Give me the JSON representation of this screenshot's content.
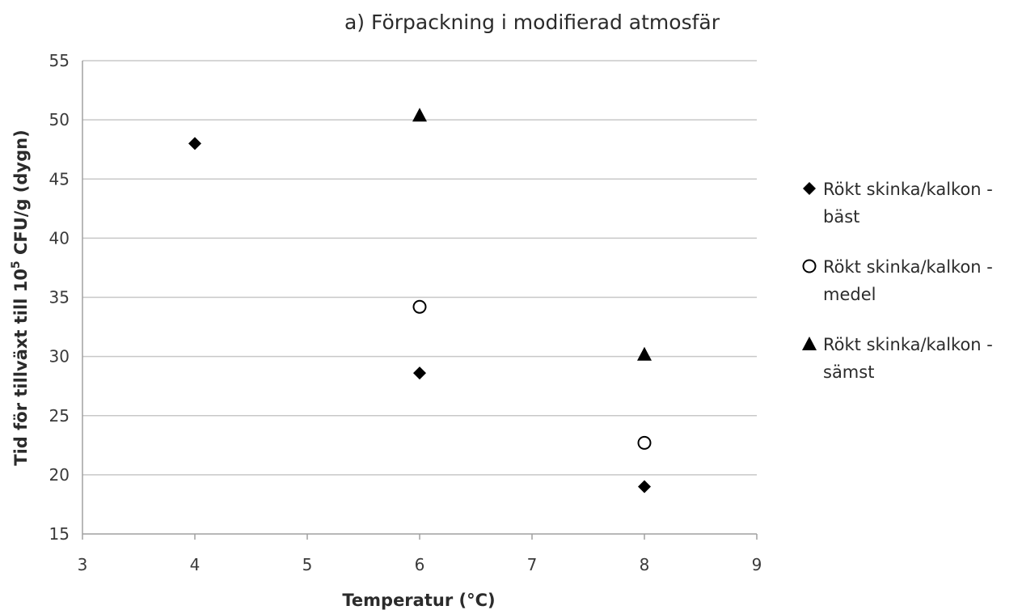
{
  "chart_data": {
    "type": "scatter",
    "title": "a) Förpackning i modifierad atmosfär",
    "xlabel": "Temperatur (°C)",
    "ylabel": {
      "prefix": "Tid för tillväxt till 10",
      "superscript": "5",
      "suffix": " CFU/g (dygn)"
    },
    "xlim": [
      3,
      9
    ],
    "ylim": [
      15,
      55
    ],
    "xticks": [
      "3",
      "4",
      "5",
      "6",
      "7",
      "8",
      "9"
    ],
    "yticks": [
      "15",
      "20",
      "25",
      "30",
      "35",
      "40",
      "45",
      "50",
      "55"
    ],
    "grid": "horizontal",
    "legend_position": "right",
    "series": [
      {
        "name": "Rökt skinka/kalkon - bäst",
        "legend_lines": [
          "Rökt skinka/kalkon -",
          "bäst"
        ],
        "marker": "diamond",
        "color": "#000000",
        "points": [
          [
            4,
            48.0
          ],
          [
            6,
            28.6
          ],
          [
            8,
            19.0
          ]
        ]
      },
      {
        "name": "Rökt skinka/kalkon - medel",
        "legend_lines": [
          "Rökt skinka/kalkon -",
          "medel"
        ],
        "marker": "circle-open",
        "color": "#000000",
        "points": [
          [
            6,
            34.2
          ],
          [
            8,
            22.7
          ]
        ]
      },
      {
        "name": "Rökt skinka/kalkon - sämst",
        "legend_lines": [
          "Rökt skinka/kalkon -",
          "sämst"
        ],
        "marker": "triangle",
        "color": "#000000",
        "points": [
          [
            6,
            50.4
          ],
          [
            8,
            30.2
          ]
        ]
      }
    ]
  },
  "colors": {
    "gridline": "#c8c8c8",
    "axis": "#a0a0a0",
    "marker": "#000000"
  }
}
